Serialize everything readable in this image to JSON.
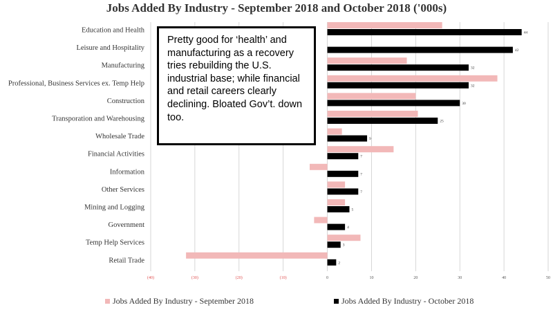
{
  "chart_data": {
    "type": "bar",
    "orientation": "horizontal",
    "title": "Jobs Added By Industry - September 2018 and October 2018 ('000s)",
    "categories": [
      "Education and Health",
      "Leisure and Hospitality",
      "Manufacturing",
      "Professional, Business Services ex. Temp Help",
      "Construction",
      "Transporation and Warehousing",
      "Wholesale Trade",
      "Financial Activities",
      "Information",
      "Other Services",
      "Mining and Logging",
      "Government",
      "Temp Help Services",
      "Retail Trade"
    ],
    "series": [
      {
        "name": "Jobs Added By Industry - September 2018",
        "color": "#f2b8b8",
        "values": [
          26,
          0,
          18,
          38.5,
          20,
          20.5,
          3.3,
          15,
          -4,
          4,
          4,
          -3,
          7.5,
          -32
        ]
      },
      {
        "name": "Jobs Added By Industry - October 2018",
        "color": "#000000",
        "values": [
          44,
          42,
          32,
          32,
          30,
          25,
          9,
          7,
          7,
          7,
          5,
          4,
          3,
          2
        ]
      }
    ],
    "data_labels": [
      "44",
      "42",
      "32",
      "32",
      "30",
      "25",
      "9",
      "7",
      "7",
      "7",
      "5",
      "4",
      "3",
      "2"
    ],
    "xlim": [
      -40,
      50
    ],
    "x_ticks": [
      "(40)",
      "(30)",
      "(20)",
      "(10)",
      "0",
      "10",
      "20",
      "30",
      "40",
      "50"
    ],
    "x_tick_values": [
      -40,
      -30,
      -20,
      -10,
      0,
      10,
      20,
      30,
      40,
      50
    ],
    "negative_tick_color": "#e05050",
    "grid": true,
    "gridline_color": "#cccccc",
    "legend_position": "bottom"
  },
  "annotation": {
    "text": "Pretty good for ‘health’ and manufacturing as a recovery tries rebuilding the U.S. industrial base; while financial and retail careers clearly declining. Bloated Gov’t. down too."
  }
}
